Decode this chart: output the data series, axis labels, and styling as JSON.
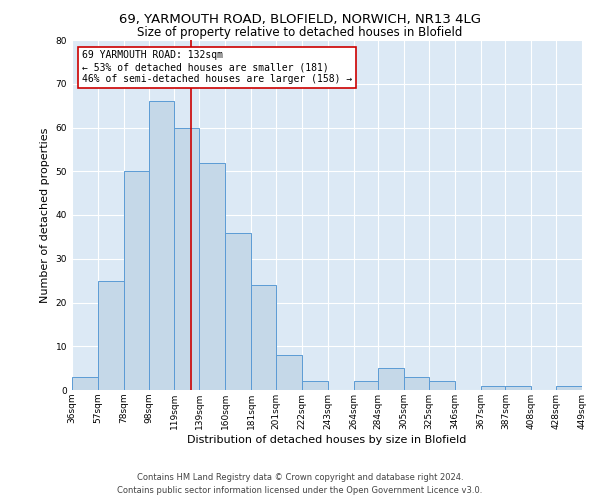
{
  "title_line1": "69, YARMOUTH ROAD, BLOFIELD, NORWICH, NR13 4LG",
  "title_line2": "Size of property relative to detached houses in Blofield",
  "xlabel": "Distribution of detached houses by size in Blofield",
  "ylabel": "Number of detached properties",
  "footer_line1": "Contains HM Land Registry data © Crown copyright and database right 2024.",
  "footer_line2": "Contains public sector information licensed under the Open Government Licence v3.0.",
  "annotation_line1": "69 YARMOUTH ROAD: 132sqm",
  "annotation_line2": "← 53% of detached houses are smaller (181)",
  "annotation_line3": "46% of semi-detached houses are larger (158) →",
  "property_size": 132,
  "bin_edges": [
    36,
    57,
    78,
    98,
    119,
    139,
    160,
    181,
    201,
    222,
    243,
    264,
    284,
    305,
    325,
    346,
    367,
    387,
    408,
    428,
    449
  ],
  "bar_heights": [
    3,
    25,
    50,
    66,
    60,
    52,
    36,
    24,
    8,
    2,
    0,
    2,
    5,
    3,
    2,
    0,
    1,
    1,
    0,
    1
  ],
  "bar_color": "#c5d8e8",
  "bar_edge_color": "#5b9bd5",
  "vline_color": "#cc0000",
  "vline_x": 132,
  "ylim": [
    0,
    80
  ],
  "yticks": [
    0,
    10,
    20,
    30,
    40,
    50,
    60,
    70,
    80
  ],
  "axes_background": "#dce9f5",
  "annotation_box_edge_color": "#cc0000",
  "annotation_box_face_color": "#ffffff",
  "title1_fontsize": 9.5,
  "title2_fontsize": 8.5,
  "ylabel_fontsize": 8,
  "xlabel_fontsize": 8,
  "footer_fontsize": 6,
  "tick_fontsize": 6.5,
  "ann_fontsize": 7
}
